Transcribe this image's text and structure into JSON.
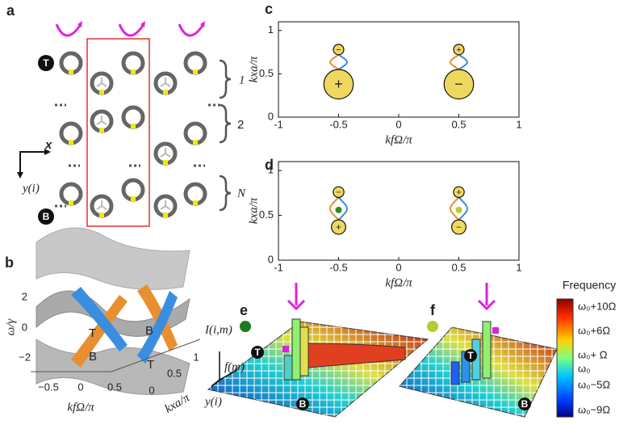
{
  "panel_labels": [
    "a",
    "b",
    "c",
    "d",
    "e",
    "f"
  ],
  "panel_a": {
    "top_label": "T",
    "bottom_label": "B",
    "groups": [
      "1",
      "2",
      "N"
    ],
    "x_axis": "x",
    "y_axis": "y(i)"
  },
  "panel_b": {
    "y_label": "ω/γ",
    "yticks": [
      "2",
      "0",
      "−2"
    ],
    "x1_label": "kfΩ/π",
    "x1_ticks": [
      "−0.5",
      "0",
      "0.5"
    ],
    "x2_label": "kxa/π",
    "x2_ticks": [
      "0",
      "0.5",
      "1"
    ],
    "surface_labels": [
      "T",
      "B",
      "B",
      "T"
    ]
  },
  "chart_data": [
    {
      "type": "lobe",
      "xlabel": "kfΩ/π",
      "ylabel": "kxa/π",
      "xlim": [
        -1,
        1
      ],
      "ylim": [
        0,
        1.1
      ],
      "xticks": [
        -1,
        -0.5,
        0,
        0.5,
        1
      ],
      "yticks": [
        0,
        0.5,
        1
      ],
      "lobes": [
        {
          "x": -0.5,
          "y": 0.78,
          "r": 0.06,
          "sign": "−"
        },
        {
          "x": -0.5,
          "y": 0.38,
          "r": 0.17,
          "sign": "+"
        },
        {
          "x": 0.5,
          "y": 0.78,
          "r": 0.06,
          "sign": "+"
        },
        {
          "x": 0.5,
          "y": 0.38,
          "r": 0.17,
          "sign": "−"
        }
      ]
    },
    {
      "type": "lobe",
      "xlabel": "kfΩ/π",
      "ylabel": "kxa/π",
      "xlim": [
        -1,
        1
      ],
      "ylim": [
        0,
        1.1
      ],
      "xticks": [
        -1,
        -0.5,
        0,
        0.5,
        1
      ],
      "yticks": [
        0,
        0.5,
        1
      ],
      "lobes": [
        {
          "x": -0.5,
          "y": 0.76,
          "r": 0.06,
          "sign": "−"
        },
        {
          "x": -0.5,
          "y": 0.37,
          "r": 0.08,
          "sign": "+"
        },
        {
          "x": 0.5,
          "y": 0.76,
          "r": 0.06,
          "sign": "+"
        },
        {
          "x": 0.5,
          "y": 0.37,
          "r": 0.08,
          "sign": "−"
        }
      ],
      "points": [
        {
          "x": -0.5,
          "y": 0.56,
          "color": "#2e8b2e"
        },
        {
          "x": 0.5,
          "y": 0.56,
          "color": "#b5cc2e"
        }
      ]
    }
  ],
  "panel_e": {
    "z_label": "I(i,m)",
    "f_label": "f(m)",
    "y_label": "y(i)",
    "top": "T",
    "bottom": "B"
  },
  "panel_f": {
    "top": "T",
    "bottom": "B"
  },
  "colorbar": {
    "title": "Frequency",
    "labels": [
      "ω₀+10Ω",
      "ω₀+6Ω",
      "ω₀+ Ω",
      "ω₀",
      "ω₀−5Ω",
      "ω₀−9Ω"
    ]
  }
}
